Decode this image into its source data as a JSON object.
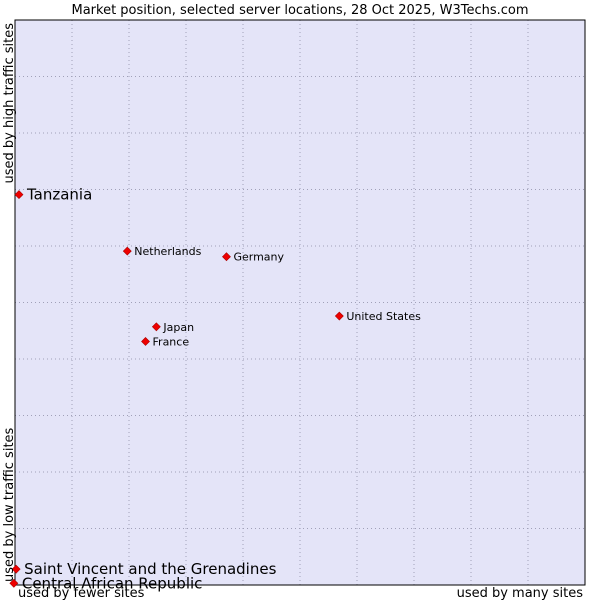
{
  "chart_data": {
    "type": "scatter",
    "title": "Market position, selected server locations, 28 Oct 2025, W3Techs.com",
    "xlabel_left": "used by fewer sites",
    "xlabel_right": "used by many sites",
    "ylabel_bottom": "used by low traffic sites",
    "ylabel_top": "used by high traffic sites",
    "xlim": [
      0,
      100
    ],
    "ylim": [
      0,
      100
    ],
    "grid": true,
    "colors": {
      "plot_background": "#e4e4f8",
      "marker": "#ee0000",
      "grid": "#a0a0b8",
      "border": "#000000"
    },
    "points": [
      {
        "name": "Tanzania",
        "x": 0.7,
        "y": 69.1,
        "emphasis": true
      },
      {
        "name": "Netherlands",
        "x": 19.7,
        "y": 59.1,
        "emphasis": false
      },
      {
        "name": "Germany",
        "x": 37.1,
        "y": 58.1,
        "emphasis": false
      },
      {
        "name": "United States",
        "x": 56.9,
        "y": 47.6,
        "emphasis": false
      },
      {
        "name": "Japan",
        "x": 24.8,
        "y": 45.7,
        "emphasis": false
      },
      {
        "name": "France",
        "x": 22.9,
        "y": 43.1,
        "emphasis": false
      },
      {
        "name": "Saint Vincent and the Grenadines",
        "x": 0.2,
        "y": 2.8,
        "emphasis": true
      },
      {
        "name": "Central African Republic",
        "x": -0.2,
        "y": 0.3,
        "emphasis": true
      }
    ]
  }
}
